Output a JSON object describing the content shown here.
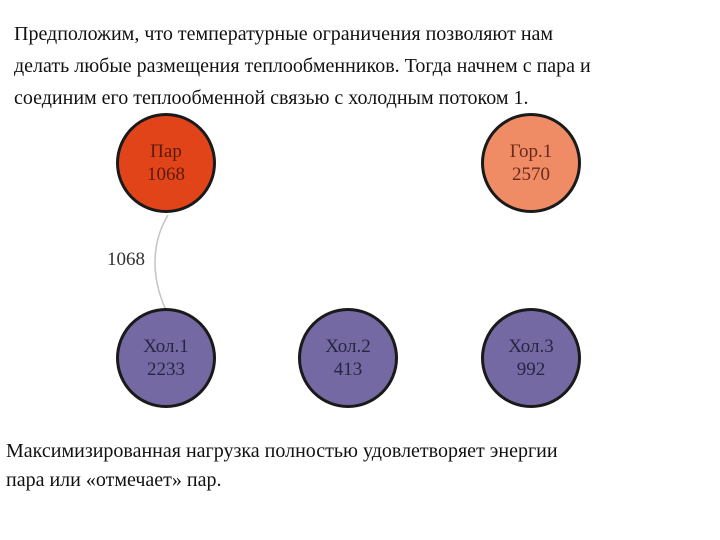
{
  "intro": {
    "lines": [
      "Предположим, что температурные ограничения позволяют нам",
      "делать любые размещения теплообменников. Тогда начнем с пара и",
      "соединим его теплообменной связью с холодным потоком 1."
    ]
  },
  "nodes": {
    "steam": {
      "name": "Пар",
      "value": "1068",
      "color": "#e2441a"
    },
    "hot1": {
      "name": "Гор.1",
      "value": "2570",
      "color": "#ef8c66"
    },
    "cold1": {
      "name": "Хол.1",
      "value": "2233",
      "color": "#7569a4"
    },
    "cold2": {
      "name": "Хол.2",
      "value": "413",
      "color": "#7569a4"
    },
    "cold3": {
      "name": "Хол.3",
      "value": "992",
      "color": "#7569a4"
    }
  },
  "link": {
    "label": "1068",
    "color": "#c4c4c4"
  },
  "summary": {
    "lines": [
      "Максимизированная нагрузка полностью удовлетворяет энергии",
      "пара или «отмечает» пар."
    ]
  }
}
